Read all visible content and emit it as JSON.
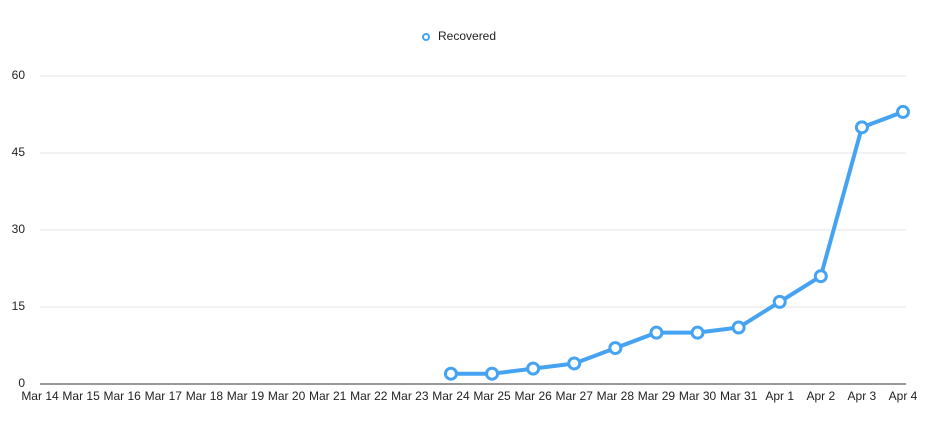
{
  "chart_data": {
    "type": "line",
    "categories": [
      "Mar 14",
      "Mar 15",
      "Mar 16",
      "Mar 17",
      "Mar 18",
      "Mar 19",
      "Mar 20",
      "Mar 21",
      "Mar 22",
      "Mar 23",
      "Mar 24",
      "Mar 25",
      "Mar 26",
      "Mar 27",
      "Mar 28",
      "Mar 29",
      "Mar 30",
      "Mar 31",
      "Apr 1",
      "Apr 2",
      "Apr 3",
      "Apr 4"
    ],
    "series": [
      {
        "name": "Recovered",
        "color": "#45a3f2",
        "values": [
          null,
          null,
          null,
          null,
          null,
          null,
          null,
          null,
          null,
          null,
          2,
          2,
          3,
          4,
          7,
          10,
          10,
          11,
          16,
          21,
          50,
          53
        ]
      }
    ],
    "ylim": [
      0,
      60
    ],
    "yticks": [
      0,
      15,
      30,
      45,
      60
    ],
    "grid": true,
    "legend": "top"
  }
}
